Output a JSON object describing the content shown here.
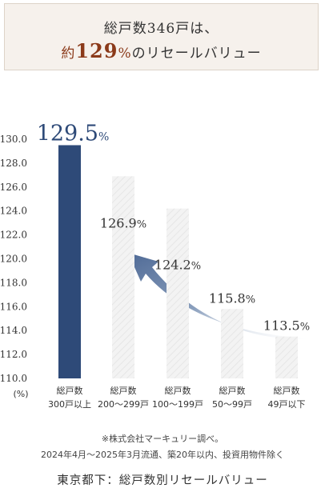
{
  "headline": {
    "line1": "総戸数346戸は、",
    "line2_prefix": "約",
    "line2_number": "129",
    "line2_percent": "%",
    "line2_suffix": "のリセールバリュー"
  },
  "footnote": {
    "source": "※株式会社マーキュリー調べ。",
    "conditions": "2024年4月〜2025年3月流通、築20年以内、投資用物件除く"
  },
  "caption": "東京都下：総戸数別リセールバリュー",
  "colors": {
    "highlight_bar": "#2e4a78",
    "other_bars": "#f3f3f3",
    "arrow": "#4f6a96",
    "headline_accent": "#8b3a1a"
  },
  "chart_data": {
    "type": "bar",
    "title": "",
    "ylabel": "(%)",
    "xlabel": "",
    "ylim": [
      110,
      130
    ],
    "yticks": [
      "110.0",
      "112.0",
      "114.0",
      "116.0",
      "118.0",
      "120.0",
      "122.0",
      "124.0",
      "126.0",
      "128.0",
      "130.0"
    ],
    "categories": [
      [
        "総戸数",
        "300戸以上"
      ],
      [
        "総戸数",
        "200〜299戸"
      ],
      [
        "総戸数",
        "100〜199戸"
      ],
      [
        "総戸数",
        "50〜99戸"
      ],
      [
        "総戸数",
        "49戸以下"
      ]
    ],
    "values": [
      129.5,
      126.9,
      124.2,
      115.8,
      113.5
    ],
    "value_labels": [
      {
        "number": "129.5",
        "unit": "%"
      },
      {
        "number": "126.9",
        "unit": "%"
      },
      {
        "number": "124.2",
        "unit": "%"
      },
      {
        "number": "115.8",
        "unit": "%"
      },
      {
        "number": "113.5",
        "unit": "%"
      }
    ],
    "highlight_index": 0,
    "grid": false,
    "annotation": "curved arrow pointing from the lower bars up to the highlighted bar"
  }
}
